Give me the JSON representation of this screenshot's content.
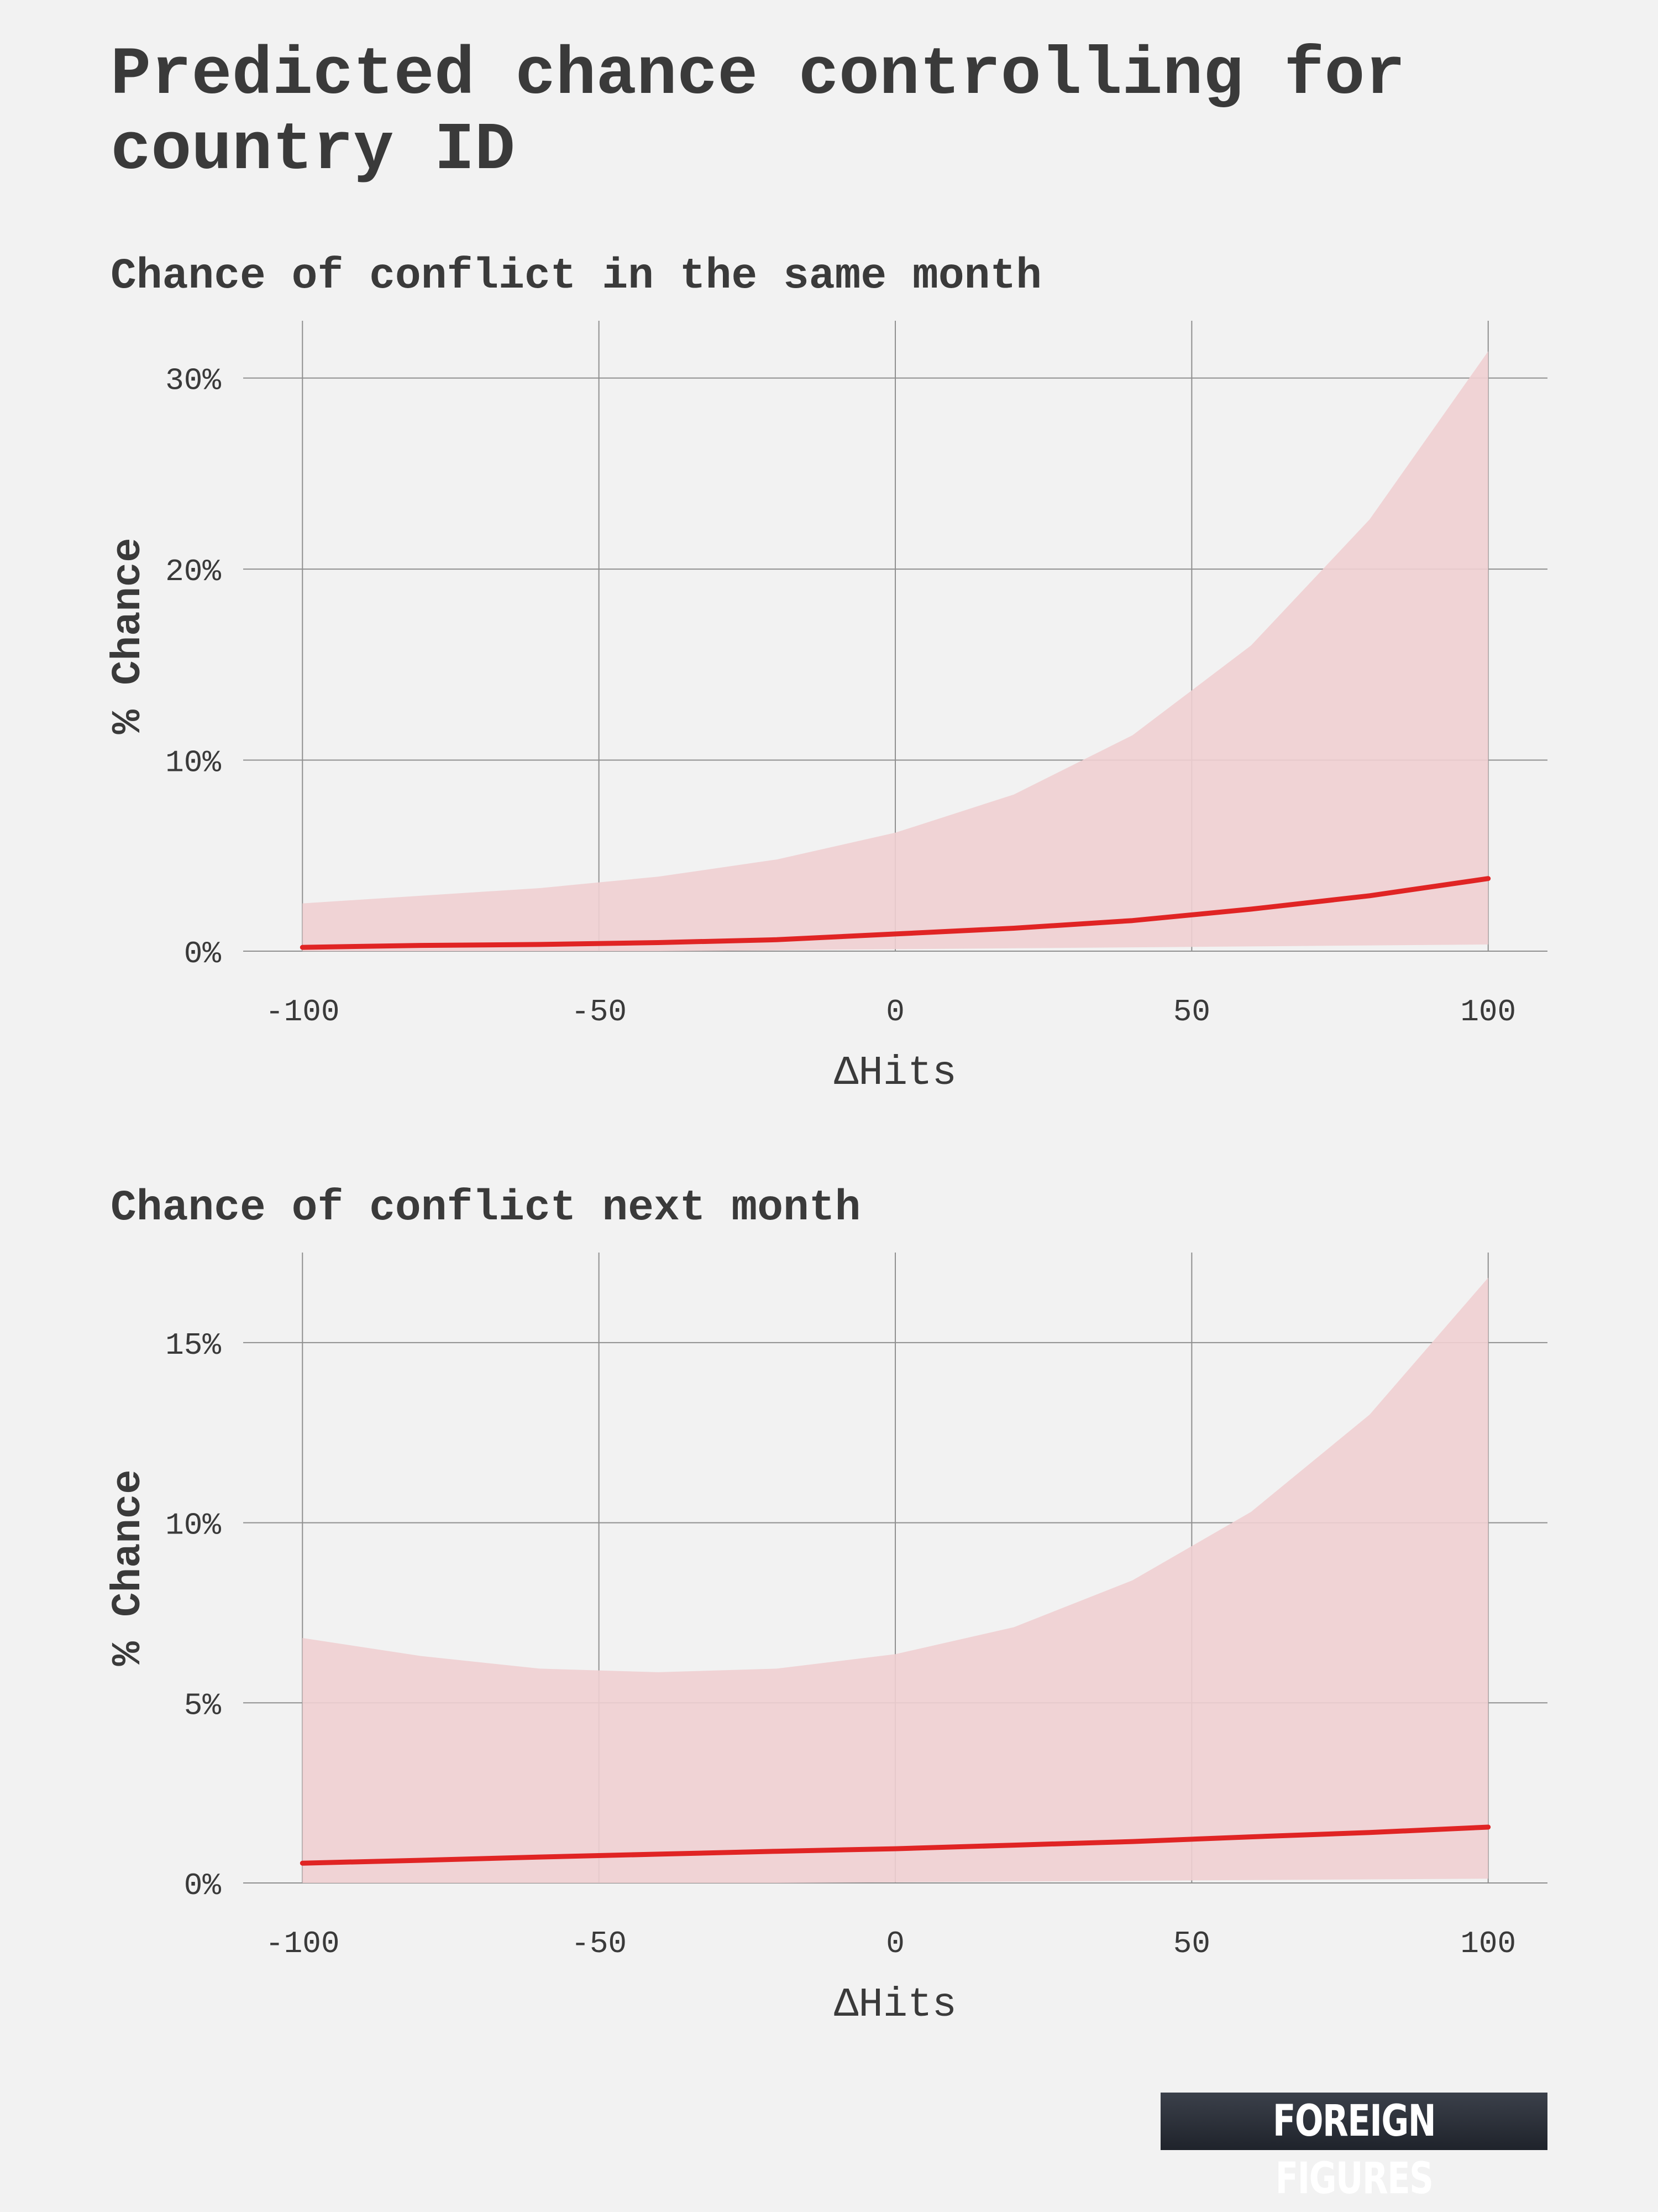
{
  "page": {
    "title": "Predicted chance controlling for country ID",
    "brand": "FOREIGN FIGURES"
  },
  "colors": {
    "background": "#f2f2f2",
    "line": "#e02424",
    "band": "#f0cfd2",
    "grid": "#8f8f8f",
    "text": "#3a3a3a"
  },
  "chart_data": [
    {
      "type": "line",
      "subtitle": "Chance of conflict in the same month",
      "xlabel": "ΔHits",
      "ylabel": "% Chance",
      "xlim": [
        -110,
        110
      ],
      "ylim": [
        0,
        33
      ],
      "xticks": [
        -100,
        -50,
        0,
        50,
        100
      ],
      "yticks": [
        0,
        10,
        20,
        30
      ],
      "ytick_labels": [
        "0%",
        "10%",
        "20%",
        "30%"
      ],
      "grid": true,
      "x": [
        -100,
        -80,
        -60,
        -40,
        -20,
        0,
        20,
        40,
        60,
        80,
        100
      ],
      "series": [
        {
          "values": [
            0.2,
            0.3,
            0.35,
            0.45,
            0.6,
            0.9,
            1.2,
            1.6,
            2.2,
            2.9,
            3.8
          ],
          "lower": [
            0.0,
            0.0,
            0.0,
            0.0,
            0.05,
            0.1,
            0.15,
            0.2,
            0.25,
            0.3,
            0.35
          ],
          "upper": [
            2.5,
            2.9,
            3.3,
            3.9,
            4.8,
            6.2,
            8.2,
            11.3,
            16.0,
            22.6,
            31.4
          ]
        }
      ]
    },
    {
      "type": "line",
      "subtitle": "Chance of conflict next month",
      "xlabel": "ΔHits",
      "ylabel": "% Chance",
      "xlim": [
        -110,
        110
      ],
      "ylim": [
        0,
        17.5
      ],
      "xticks": [
        -100,
        -50,
        0,
        50,
        100
      ],
      "yticks": [
        0,
        5,
        10,
        15
      ],
      "ytick_labels": [
        "0%",
        "5%",
        "10%",
        "15%"
      ],
      "grid": true,
      "x": [
        -100,
        -80,
        -60,
        -40,
        -20,
        0,
        20,
        40,
        60,
        80,
        100
      ],
      "series": [
        {
          "values": [
            0.55,
            0.63,
            0.72,
            0.8,
            0.88,
            0.95,
            1.05,
            1.15,
            1.28,
            1.4,
            1.55
          ],
          "lower": [
            0.0,
            0.0,
            0.0,
            0.0,
            0.0,
            0.02,
            0.04,
            0.06,
            0.08,
            0.1,
            0.12
          ],
          "upper": [
            6.8,
            6.3,
            5.95,
            5.85,
            5.95,
            6.35,
            7.1,
            8.4,
            10.3,
            13.0,
            16.8
          ]
        }
      ]
    }
  ]
}
